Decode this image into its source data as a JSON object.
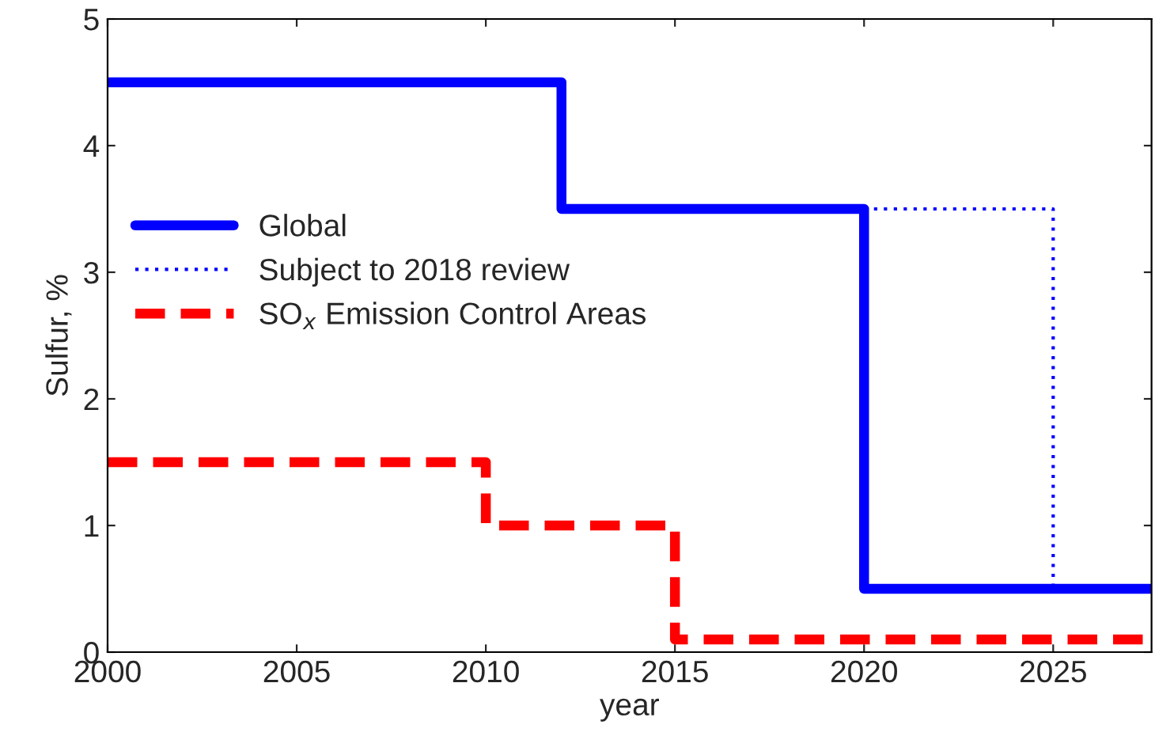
{
  "chart_data": {
    "type": "step",
    "xlabel": "year",
    "ylabel": "Sulfur, %",
    "series": [
      {
        "name": "Global",
        "color": "#0000ff",
        "x": [
          2000,
          2012,
          2020,
          2027.6
        ],
        "values": [
          4.5,
          3.5,
          0.5,
          0.5
        ],
        "line_style": "solid"
      },
      {
        "name": "Subject to 2018 review",
        "color": "#0000ff",
        "x": [
          2020,
          2025
        ],
        "values": [
          3.5,
          0.5
        ],
        "line_style": "dotted"
      },
      {
        "name": "SO$_{x}$ Emission Control Areas",
        "color": "#ff0000",
        "x": [
          2000,
          2010,
          2015,
          2027.6
        ],
        "values": [
          1.5,
          1.0,
          0.1,
          0.1
        ],
        "line_style": "dashed"
      }
    ],
    "xlim": [
      2000,
      2027.6
    ],
    "xticks": [
      2000,
      2005,
      2010,
      2015,
      2020,
      2025
    ],
    "ylim": [
      0,
      5
    ],
    "yticks": [
      0,
      1,
      2,
      3,
      4,
      5
    ],
    "grid": false,
    "legend": "center left",
    "marker": "none"
  }
}
